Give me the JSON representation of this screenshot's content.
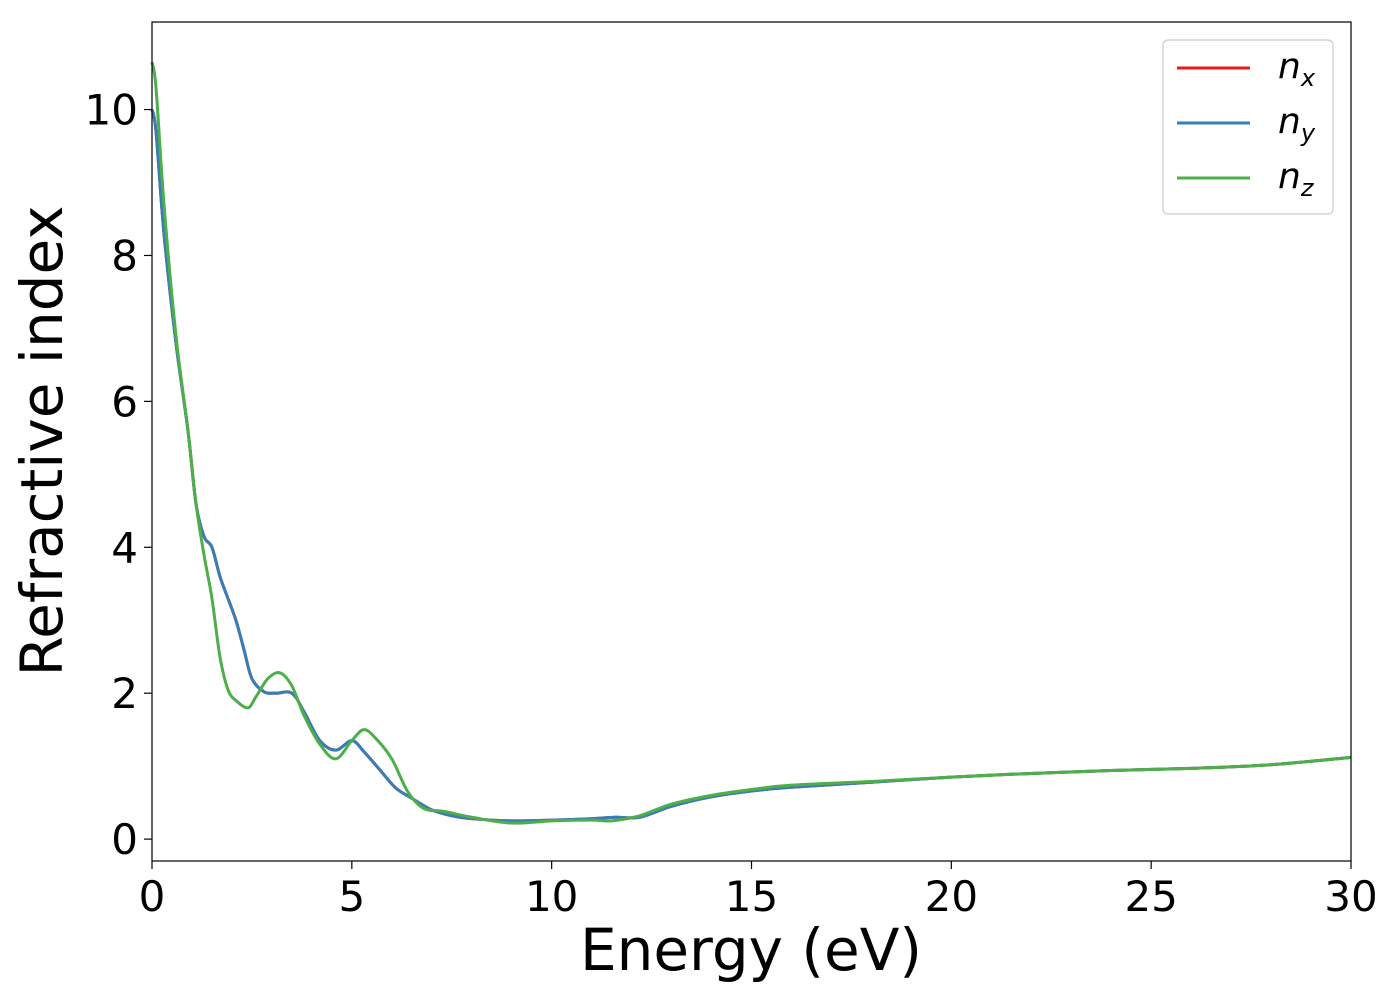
{
  "chart_data": {
    "type": "line",
    "xlabel": "Energy (eV)",
    "ylabel": "Refractive index",
    "xlim": [
      0,
      30
    ],
    "ylim": [
      -0.3,
      11.2
    ],
    "x_ticks": [
      "0",
      "5",
      "10",
      "15",
      "20",
      "25",
      "30"
    ],
    "y_ticks": [
      "0",
      "2",
      "4",
      "6",
      "8",
      "10"
    ],
    "grid": false,
    "legend": {
      "position": "top-right"
    },
    "series": [
      {
        "name": "n",
        "subscript": "x",
        "color": "#e41a1c",
        "x": [
          0,
          0.1,
          0.3,
          0.6,
          0.9,
          1.1,
          1.3,
          1.5,
          1.7,
          1.9,
          2.1,
          2.3,
          2.5,
          2.8,
          3.1,
          3.5,
          3.8,
          4.2,
          4.6,
          5.0,
          5.3,
          5.7,
          6.1,
          6.5,
          7.0,
          7.5,
          8.0,
          9.0,
          10.0,
          11.0,
          11.6,
          12.2,
          13.0,
          14.0,
          15.0,
          16.0,
          18.0,
          20.0,
          22.0,
          24.0,
          26.0,
          28.0,
          30.0
        ],
        "y": [
          10.0,
          9.7,
          8.3,
          6.8,
          5.6,
          4.6,
          4.15,
          4.0,
          3.6,
          3.3,
          3.0,
          2.6,
          2.2,
          2.02,
          2.0,
          2.0,
          1.75,
          1.35,
          1.22,
          1.35,
          1.2,
          0.95,
          0.7,
          0.56,
          0.4,
          0.32,
          0.28,
          0.25,
          0.26,
          0.28,
          0.3,
          0.3,
          0.45,
          0.58,
          0.66,
          0.71,
          0.78,
          0.85,
          0.9,
          0.94,
          0.97,
          1.02,
          1.12
        ]
      },
      {
        "name": "n",
        "subscript": "y",
        "color": "#377eb8",
        "x": [
          0,
          0.1,
          0.3,
          0.6,
          0.9,
          1.1,
          1.3,
          1.5,
          1.7,
          1.9,
          2.1,
          2.3,
          2.5,
          2.8,
          3.1,
          3.5,
          3.8,
          4.2,
          4.6,
          5.0,
          5.3,
          5.7,
          6.1,
          6.5,
          7.0,
          7.5,
          8.0,
          9.0,
          10.0,
          11.0,
          11.6,
          12.2,
          13.0,
          14.0,
          15.0,
          16.0,
          18.0,
          20.0,
          22.0,
          24.0,
          26.0,
          28.0,
          30.0
        ],
        "y": [
          10.0,
          9.7,
          8.3,
          6.8,
          5.6,
          4.6,
          4.15,
          4.0,
          3.6,
          3.3,
          3.0,
          2.6,
          2.2,
          2.02,
          2.0,
          2.0,
          1.75,
          1.35,
          1.22,
          1.35,
          1.2,
          0.95,
          0.7,
          0.56,
          0.4,
          0.32,
          0.28,
          0.25,
          0.26,
          0.28,
          0.3,
          0.3,
          0.45,
          0.58,
          0.66,
          0.71,
          0.78,
          0.85,
          0.9,
          0.94,
          0.97,
          1.02,
          1.12
        ]
      },
      {
        "name": "n",
        "subscript": "z",
        "color": "#4daf4a",
        "x": [
          0,
          0.1,
          0.3,
          0.6,
          0.9,
          1.1,
          1.3,
          1.5,
          1.7,
          1.9,
          2.1,
          2.4,
          2.6,
          2.9,
          3.2,
          3.5,
          3.8,
          4.2,
          4.6,
          5.0,
          5.3,
          5.6,
          6.0,
          6.4,
          6.8,
          7.3,
          8.0,
          9.0,
          10.0,
          11.0,
          11.5,
          12.2,
          13.0,
          14.0,
          15.0,
          16.0,
          18.0,
          20.0,
          22.0,
          24.0,
          26.0,
          28.0,
          30.0
        ],
        "y": [
          10.65,
          10.3,
          8.7,
          6.9,
          5.6,
          4.6,
          3.9,
          3.3,
          2.5,
          2.05,
          1.9,
          1.8,
          1.95,
          2.2,
          2.28,
          2.1,
          1.7,
          1.3,
          1.1,
          1.35,
          1.5,
          1.38,
          1.1,
          0.65,
          0.42,
          0.38,
          0.3,
          0.22,
          0.25,
          0.26,
          0.25,
          0.32,
          0.48,
          0.6,
          0.68,
          0.74,
          0.79,
          0.85,
          0.9,
          0.94,
          0.97,
          1.02,
          1.12
        ]
      }
    ]
  }
}
